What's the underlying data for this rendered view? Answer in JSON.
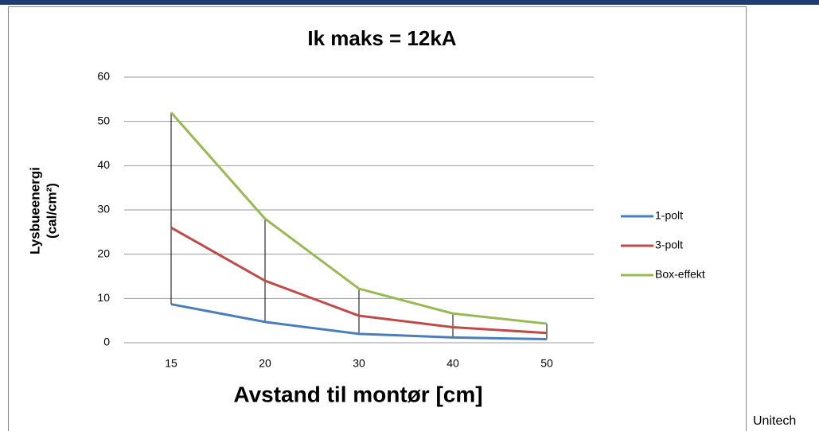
{
  "chart_data": {
    "type": "line",
    "title": "Ik  maks = 12kA",
    "y_label": [
      "Lysbueenergi",
      "(cal/cm²)"
    ],
    "x_label": "Avstand til montør [cm]",
    "categories": [
      "15",
      "20",
      "30",
      "40",
      "50"
    ],
    "series": [
      {
        "name": "1-polt",
        "color": "#4a7ebb",
        "values": [
          8.7,
          4.7,
          2.0,
          1.2,
          0.8
        ]
      },
      {
        "name": "3-polt",
        "color": "#be4b48",
        "values": [
          26,
          14,
          6.1,
          3.5,
          2.2
        ]
      },
      {
        "name": "Box-effekt",
        "color": "#98b954",
        "values": [
          52,
          28,
          12.2,
          6.6,
          4.3
        ]
      }
    ],
    "high_low_lines": true,
    "ylim": [
      0,
      60
    ],
    "yticks": [
      0,
      10,
      20,
      30,
      40,
      50,
      60
    ],
    "grid": true,
    "legend": "right"
  },
  "caption": "Unitech"
}
